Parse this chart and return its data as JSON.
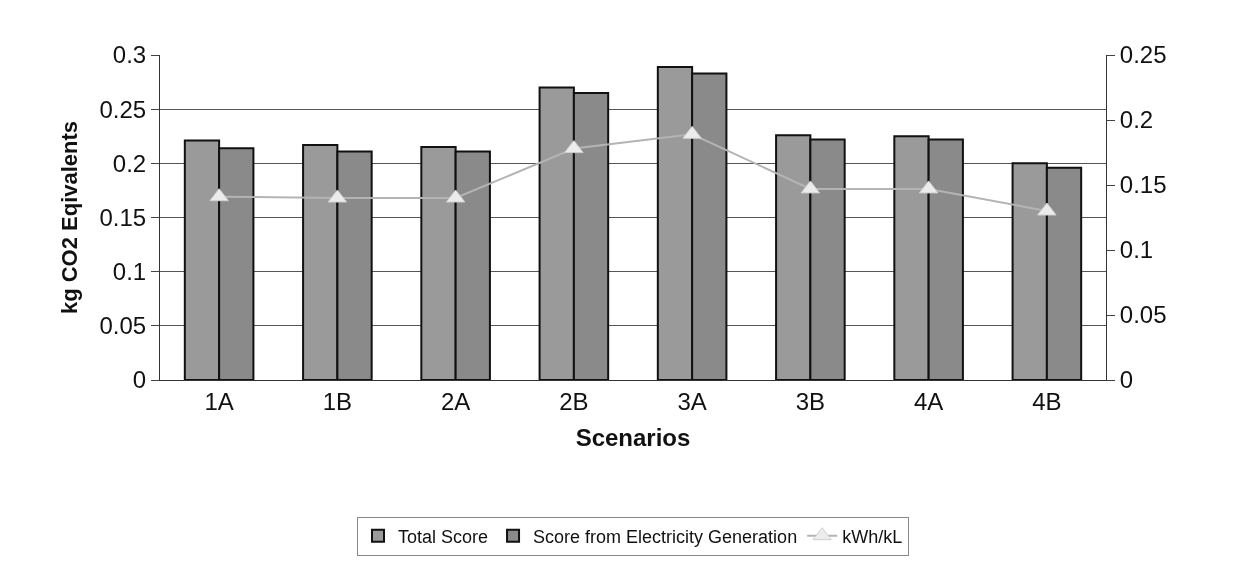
{
  "chart_data": {
    "type": "bar",
    "xlabel": "Scenarios",
    "ylabel": "kg CO2 Eqivalents",
    "categories": [
      "1A",
      "1B",
      "2A",
      "2B",
      "3A",
      "3B",
      "4A",
      "4B"
    ],
    "series": [
      {
        "name": "Total Score",
        "color": "#9a9a9a",
        "values": [
          0.221,
          0.217,
          0.215,
          0.27,
          0.289,
          0.226,
          0.225,
          0.2
        ]
      },
      {
        "name": "Score from Electricity Generation",
        "color": "#8a8a8a",
        "values": [
          0.214,
          0.211,
          0.211,
          0.265,
          0.283,
          0.222,
          0.222,
          0.196
        ]
      },
      {
        "name": "kWh/kL",
        "type": "line",
        "axis": "y2",
        "color": "#b4b4b4",
        "marker": "triangle",
        "values": [
          0.141,
          0.14,
          0.14,
          0.178,
          0.189,
          0.147,
          0.147,
          0.13
        ]
      }
    ],
    "ylim": [
      0,
      0.3
    ],
    "yticks": [
      0,
      0.05,
      0.1,
      0.15,
      0.2,
      0.25,
      0.3
    ],
    "y2lim": [
      0,
      0.25
    ],
    "y2ticks": [
      0,
      0.05,
      0.1,
      0.15,
      0.2,
      0.25
    ],
    "grid": "y",
    "legend": "bottom"
  }
}
